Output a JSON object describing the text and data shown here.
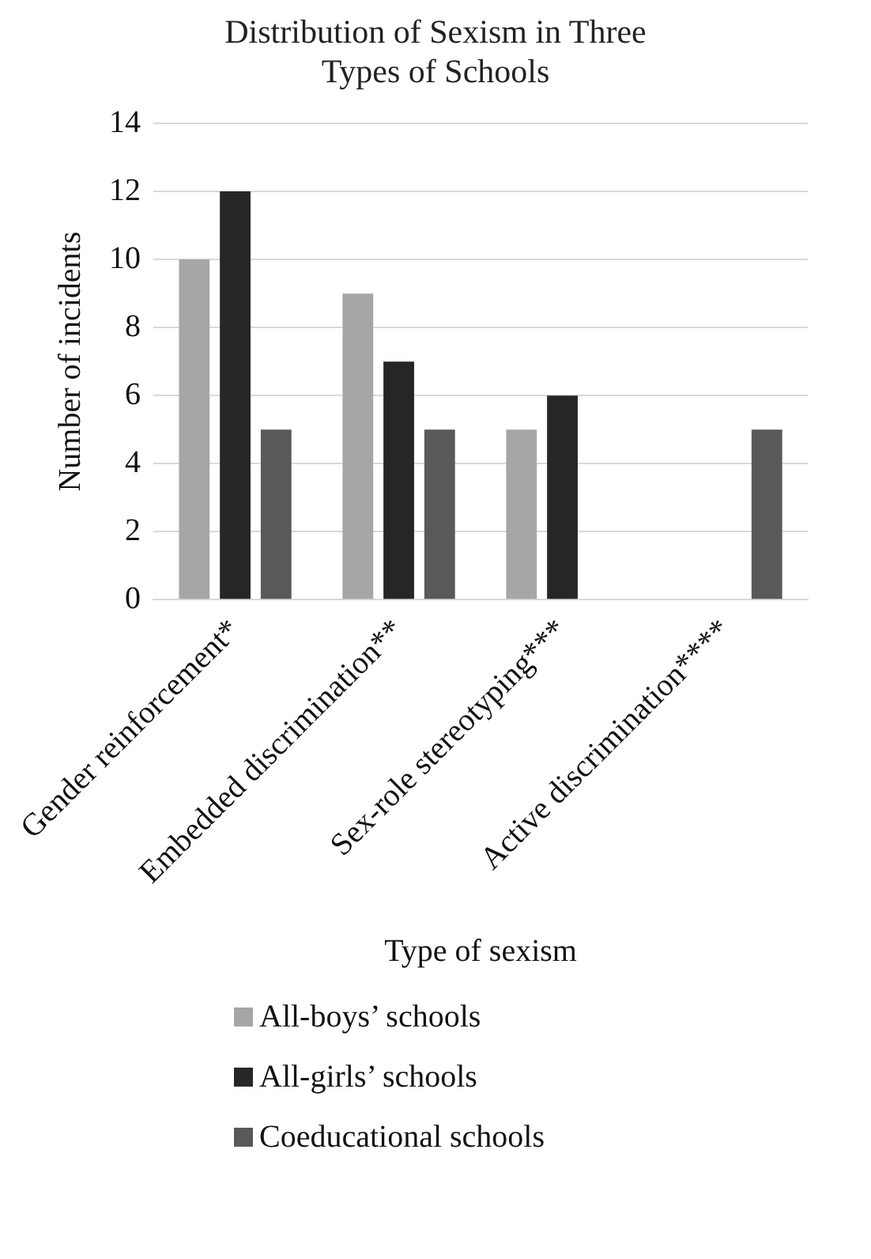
{
  "chart_data": {
    "type": "bar",
    "title": "Distribution of Sexism in Three Types of Schools",
    "xlabel": "Type of sexism",
    "ylabel": "Number of incidents",
    "categories": [
      "Gender reinforcement*",
      "Embedded discrimination**",
      "Sex-role stereotyping***",
      "Active discrimination****"
    ],
    "series": [
      {
        "name": "All-boys’ schools",
        "color": "#a6a6a6",
        "values": [
          10,
          9,
          5,
          0
        ]
      },
      {
        "name": "All-girls’ schools",
        "color": "#262626",
        "values": [
          12,
          7,
          6,
          0
        ]
      },
      {
        "name": "Coeducational schools",
        "color": "#595959",
        "values": [
          5,
          5,
          0,
          5
        ]
      }
    ],
    "ylim": [
      0,
      14
    ],
    "yticks": [
      0,
      2,
      4,
      6,
      8,
      10,
      12,
      14
    ],
    "grid": "y",
    "legend": "bottom"
  }
}
